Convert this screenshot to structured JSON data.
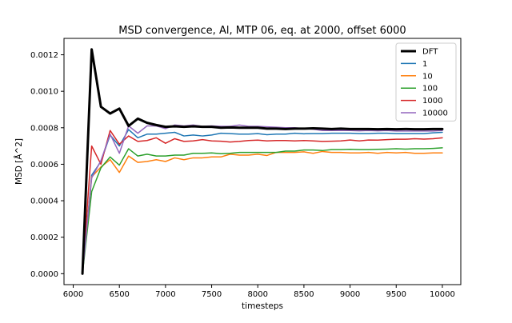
{
  "chart_data": {
    "type": "line",
    "title": "MSD convergence, Al, MTP 06, eq. at 2000, offset 6000",
    "xlabel": "timesteps",
    "ylabel": "MSD [Å^2]",
    "xlim": [
      5900,
      10200
    ],
    "ylim": [
      -6e-05,
      0.00129
    ],
    "xticks": [
      {
        "value": 6000,
        "label": "6000"
      },
      {
        "value": 6500,
        "label": "6500"
      },
      {
        "value": 7000,
        "label": "7000"
      },
      {
        "value": 7500,
        "label": "7500"
      },
      {
        "value": 8000,
        "label": "8000"
      },
      {
        "value": 8500,
        "label": "8500"
      },
      {
        "value": 9000,
        "label": "9000"
      },
      {
        "value": 9500,
        "label": "9500"
      },
      {
        "value": 10000,
        "label": "10000"
      }
    ],
    "yticks": [
      {
        "value": 0.0,
        "label": "0.0000"
      },
      {
        "value": 0.0002,
        "label": "0.0002"
      },
      {
        "value": 0.0004,
        "label": "0.0004"
      },
      {
        "value": 0.0006,
        "label": "0.0006"
      },
      {
        "value": 0.0008,
        "label": "0.0008"
      },
      {
        "value": 0.001,
        "label": "0.0010"
      },
      {
        "value": 0.0012,
        "label": "0.0012"
      }
    ],
    "grid": false,
    "legend_position": "top-right",
    "x": [
      6100,
      6200,
      6300,
      6400,
      6500,
      6600,
      6700,
      6800,
      6900,
      7000,
      7100,
      7200,
      7300,
      7400,
      7500,
      7600,
      7700,
      7800,
      7900,
      8000,
      8100,
      8200,
      8300,
      8400,
      8500,
      8600,
      8700,
      8800,
      8900,
      9000,
      9100,
      9200,
      9300,
      9400,
      9500,
      9600,
      9700,
      9800,
      9900,
      10000
    ],
    "series": [
      {
        "name": "DFT",
        "color": "#000000",
        "width": 3,
        "values": [
          0.0,
          0.00123,
          0.000915,
          0.000878,
          0.000905,
          0.00081,
          0.00085,
          0.000827,
          0.000815,
          0.000805,
          0.000808,
          0.000805,
          0.000808,
          0.000805,
          0.000805,
          0.0008,
          0.000802,
          0.0008,
          0.0008,
          0.0008,
          0.000795,
          0.000795,
          0.000793,
          0.000795,
          0.000795,
          0.000797,
          0.000795,
          0.000793,
          0.000795,
          0.000793,
          0.000793,
          0.000793,
          0.000792,
          0.000793,
          0.000792,
          0.000793,
          0.000792,
          0.000792,
          0.000793,
          0.000793
        ]
      },
      {
        "name": "1",
        "color": "#1f77b4",
        "width": 1.5,
        "values": [
          0.0,
          0.00054,
          0.000615,
          0.00076,
          0.0007,
          0.00079,
          0.000745,
          0.000765,
          0.000765,
          0.00077,
          0.000775,
          0.000755,
          0.00076,
          0.000755,
          0.00076,
          0.00077,
          0.000768,
          0.000765,
          0.000765,
          0.000768,
          0.000762,
          0.000765,
          0.000765,
          0.00077,
          0.000767,
          0.000768,
          0.000768,
          0.00077,
          0.00077,
          0.00077,
          0.000768,
          0.000768,
          0.00077,
          0.00077,
          0.000768,
          0.000768,
          0.000768,
          0.000768,
          0.000772,
          0.000775
        ]
      },
      {
        "name": "10",
        "color": "#ff7f0e",
        "width": 1.5,
        "values": [
          0.0,
          0.00053,
          0.000585,
          0.000625,
          0.000555,
          0.000645,
          0.00061,
          0.000615,
          0.000625,
          0.000615,
          0.000635,
          0.000625,
          0.000635,
          0.000635,
          0.00064,
          0.00064,
          0.000655,
          0.00065,
          0.00065,
          0.000655,
          0.000648,
          0.000665,
          0.000665,
          0.000665,
          0.000668,
          0.00066,
          0.00067,
          0.000665,
          0.000665,
          0.000662,
          0.000662,
          0.000665,
          0.00066,
          0.000665,
          0.000662,
          0.000665,
          0.00066,
          0.00066,
          0.000662,
          0.000662
        ]
      },
      {
        "name": "100",
        "color": "#2ca02c",
        "width": 1.5,
        "values": [
          0.0,
          0.00045,
          0.00058,
          0.00064,
          0.000595,
          0.000685,
          0.000645,
          0.000655,
          0.000645,
          0.000645,
          0.00065,
          0.00065,
          0.00066,
          0.00066,
          0.000662,
          0.000658,
          0.00066,
          0.000665,
          0.000665,
          0.000665,
          0.000665,
          0.000665,
          0.000672,
          0.000672,
          0.000678,
          0.000678,
          0.000675,
          0.00068,
          0.00068,
          0.000682,
          0.00068,
          0.00068,
          0.000682,
          0.000683,
          0.000685,
          0.000683,
          0.000685,
          0.000685,
          0.000687,
          0.00069
        ]
      },
      {
        "name": "1000",
        "color": "#d62728",
        "width": 1.5,
        "values": [
          0.0,
          0.0007,
          0.0006,
          0.000785,
          0.00071,
          0.000755,
          0.000725,
          0.00073,
          0.000745,
          0.000715,
          0.00074,
          0.000725,
          0.000728,
          0.000735,
          0.000728,
          0.000726,
          0.000722,
          0.000725,
          0.00073,
          0.000732,
          0.000728,
          0.00073,
          0.00073,
          0.000728,
          0.00073,
          0.000728,
          0.000725,
          0.000726,
          0.000728,
          0.000733,
          0.000728,
          0.000733,
          0.000732,
          0.000735,
          0.000737,
          0.000737,
          0.00074,
          0.000738,
          0.00074,
          0.000745
        ]
      },
      {
        "name": "10000",
        "color": "#9467bd",
        "width": 1.5,
        "values": [
          0.0,
          0.000525,
          0.00062,
          0.000765,
          0.00066,
          0.00081,
          0.00077,
          0.00081,
          0.00081,
          0.000795,
          0.000815,
          0.00081,
          0.000815,
          0.000808,
          0.00081,
          0.000808,
          0.000808,
          0.000815,
          0.000808,
          0.000808,
          0.000805,
          0.000803,
          0.0008,
          0.0008,
          0.000795,
          0.000792,
          0.000785,
          0.000785,
          0.000785,
          0.000785,
          0.000783,
          0.000785,
          0.000783,
          0.000785,
          0.000782,
          0.000782,
          0.000782,
          0.000782,
          0.000782,
          0.000785
        ]
      }
    ]
  }
}
